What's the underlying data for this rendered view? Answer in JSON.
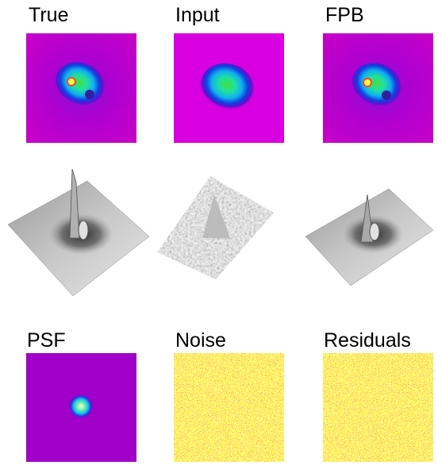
{
  "labels": [
    "True",
    "Input",
    "FPB",
    "PSF",
    "Noise",
    "Residuals"
  ]
}
